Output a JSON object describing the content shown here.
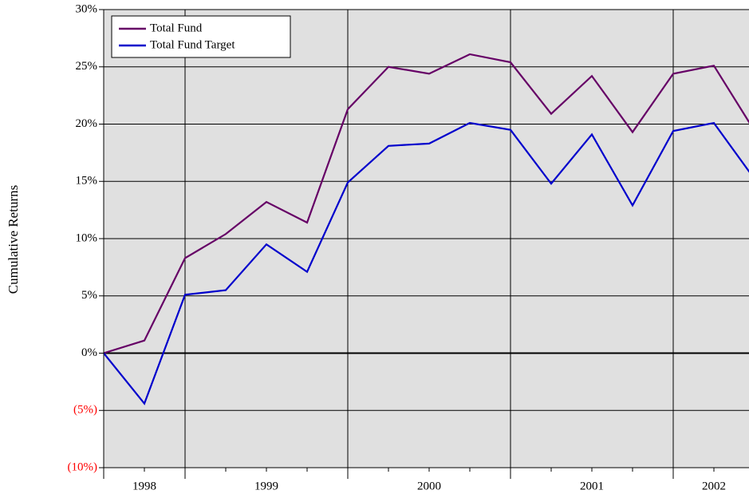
{
  "chart_data": {
    "type": "line",
    "y_label": "Cumulative Returns",
    "categories": [
      null,
      "1998",
      null,
      null,
      "1999",
      null,
      null,
      null,
      "2000",
      null,
      null,
      null,
      "2001",
      null,
      null,
      "2002",
      null
    ],
    "series": [
      {
        "name": "Total Fund",
        "color": "#660066",
        "values": [
          0,
          1.1,
          8.3,
          10.4,
          13.2,
          11.4,
          21.3,
          25.0,
          24.4,
          26.1,
          25.4,
          20.9,
          24.2,
          19.3,
          24.4,
          25.1,
          19.4
        ]
      },
      {
        "name": "Total Fund Target",
        "color": "#0000cc",
        "values": [
          0,
          -4.4,
          5.1,
          5.5,
          9.5,
          7.1,
          14.9,
          18.1,
          18.3,
          20.1,
          19.5,
          14.8,
          19.1,
          12.9,
          19.4,
          20.1,
          15.2
        ]
      }
    ],
    "ylim": [
      -10,
      30
    ],
    "yticks": [
      {
        "value": -10,
        "label": "(10%)"
      },
      {
        "value": -5,
        "label": "(5%)"
      },
      {
        "value": 0,
        "label": "0%"
      },
      {
        "value": 5,
        "label": "5%"
      },
      {
        "value": 10,
        "label": "10%"
      },
      {
        "value": 15,
        "label": "15%"
      },
      {
        "value": 20,
        "label": "20%"
      },
      {
        "value": 25,
        "label": "25%"
      },
      {
        "value": 30,
        "label": "30%"
      }
    ],
    "grid": true,
    "x_gridlines": [
      2,
      6,
      10,
      14
    ],
    "negative_tick_color": "#ff0000",
    "plot_background": "#e0e0e0",
    "legend": "upper left"
  }
}
